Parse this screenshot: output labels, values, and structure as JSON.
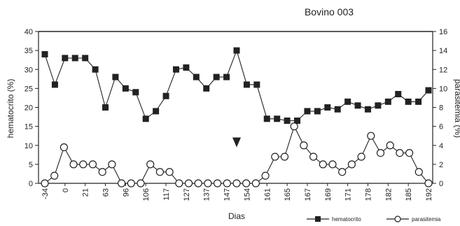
{
  "chart_data": {
    "type": "line",
    "title": "Bovino 003",
    "xlabel": "Dias",
    "ylabel_left": "hematocrito (%)",
    "ylabel_right": "parasitemia (%)",
    "ylim_left": [
      0,
      40
    ],
    "ylim_right": [
      0,
      16
    ],
    "yticks_left": [
      "0",
      "5",
      "10",
      "15",
      "20",
      "25",
      "30",
      "35",
      "40"
    ],
    "yticks_right": [
      "0",
      "2",
      "4",
      "6",
      "8",
      "10",
      "12",
      "14",
      "16"
    ],
    "x_tick_labels": [
      "-34",
      "0",
      "21",
      "63",
      "96",
      "106",
      "117",
      "127",
      "137",
      "147",
      "154",
      "161",
      "165",
      "167",
      "169",
      "171",
      "178",
      "182",
      "185",
      "192"
    ],
    "grid": false,
    "legend_position": "bottom-right",
    "arrow_marker_at_point": 20,
    "series": [
      {
        "name": "hematocrito",
        "axis": "left",
        "marker": "filled-square",
        "values": [
          34,
          26,
          33,
          33,
          33,
          30,
          20,
          28,
          25,
          24,
          17,
          19,
          23,
          30,
          30.5,
          28,
          25,
          28,
          28,
          35,
          26,
          26,
          17,
          17,
          16.5,
          16.5,
          19,
          19,
          20,
          19.5,
          21.5,
          20.5,
          19.5,
          20.5,
          21.5,
          23.5,
          21.5,
          21.5,
          24.5
        ]
      },
      {
        "name": "parasitemia",
        "axis": "right",
        "marker": "open-circle",
        "values": [
          0,
          0.8,
          3.8,
          2,
          2,
          2,
          1.2,
          2,
          0,
          0,
          0,
          2,
          1.2,
          1.2,
          0,
          0,
          0,
          0,
          0,
          0,
          0,
          0,
          0,
          0.8,
          2.8,
          2.8,
          6,
          4,
          2.8,
          2,
          2,
          1.2,
          2,
          2.8,
          5,
          3.2,
          4,
          3.2,
          3.2,
          1.2,
          0
        ]
      }
    ]
  }
}
